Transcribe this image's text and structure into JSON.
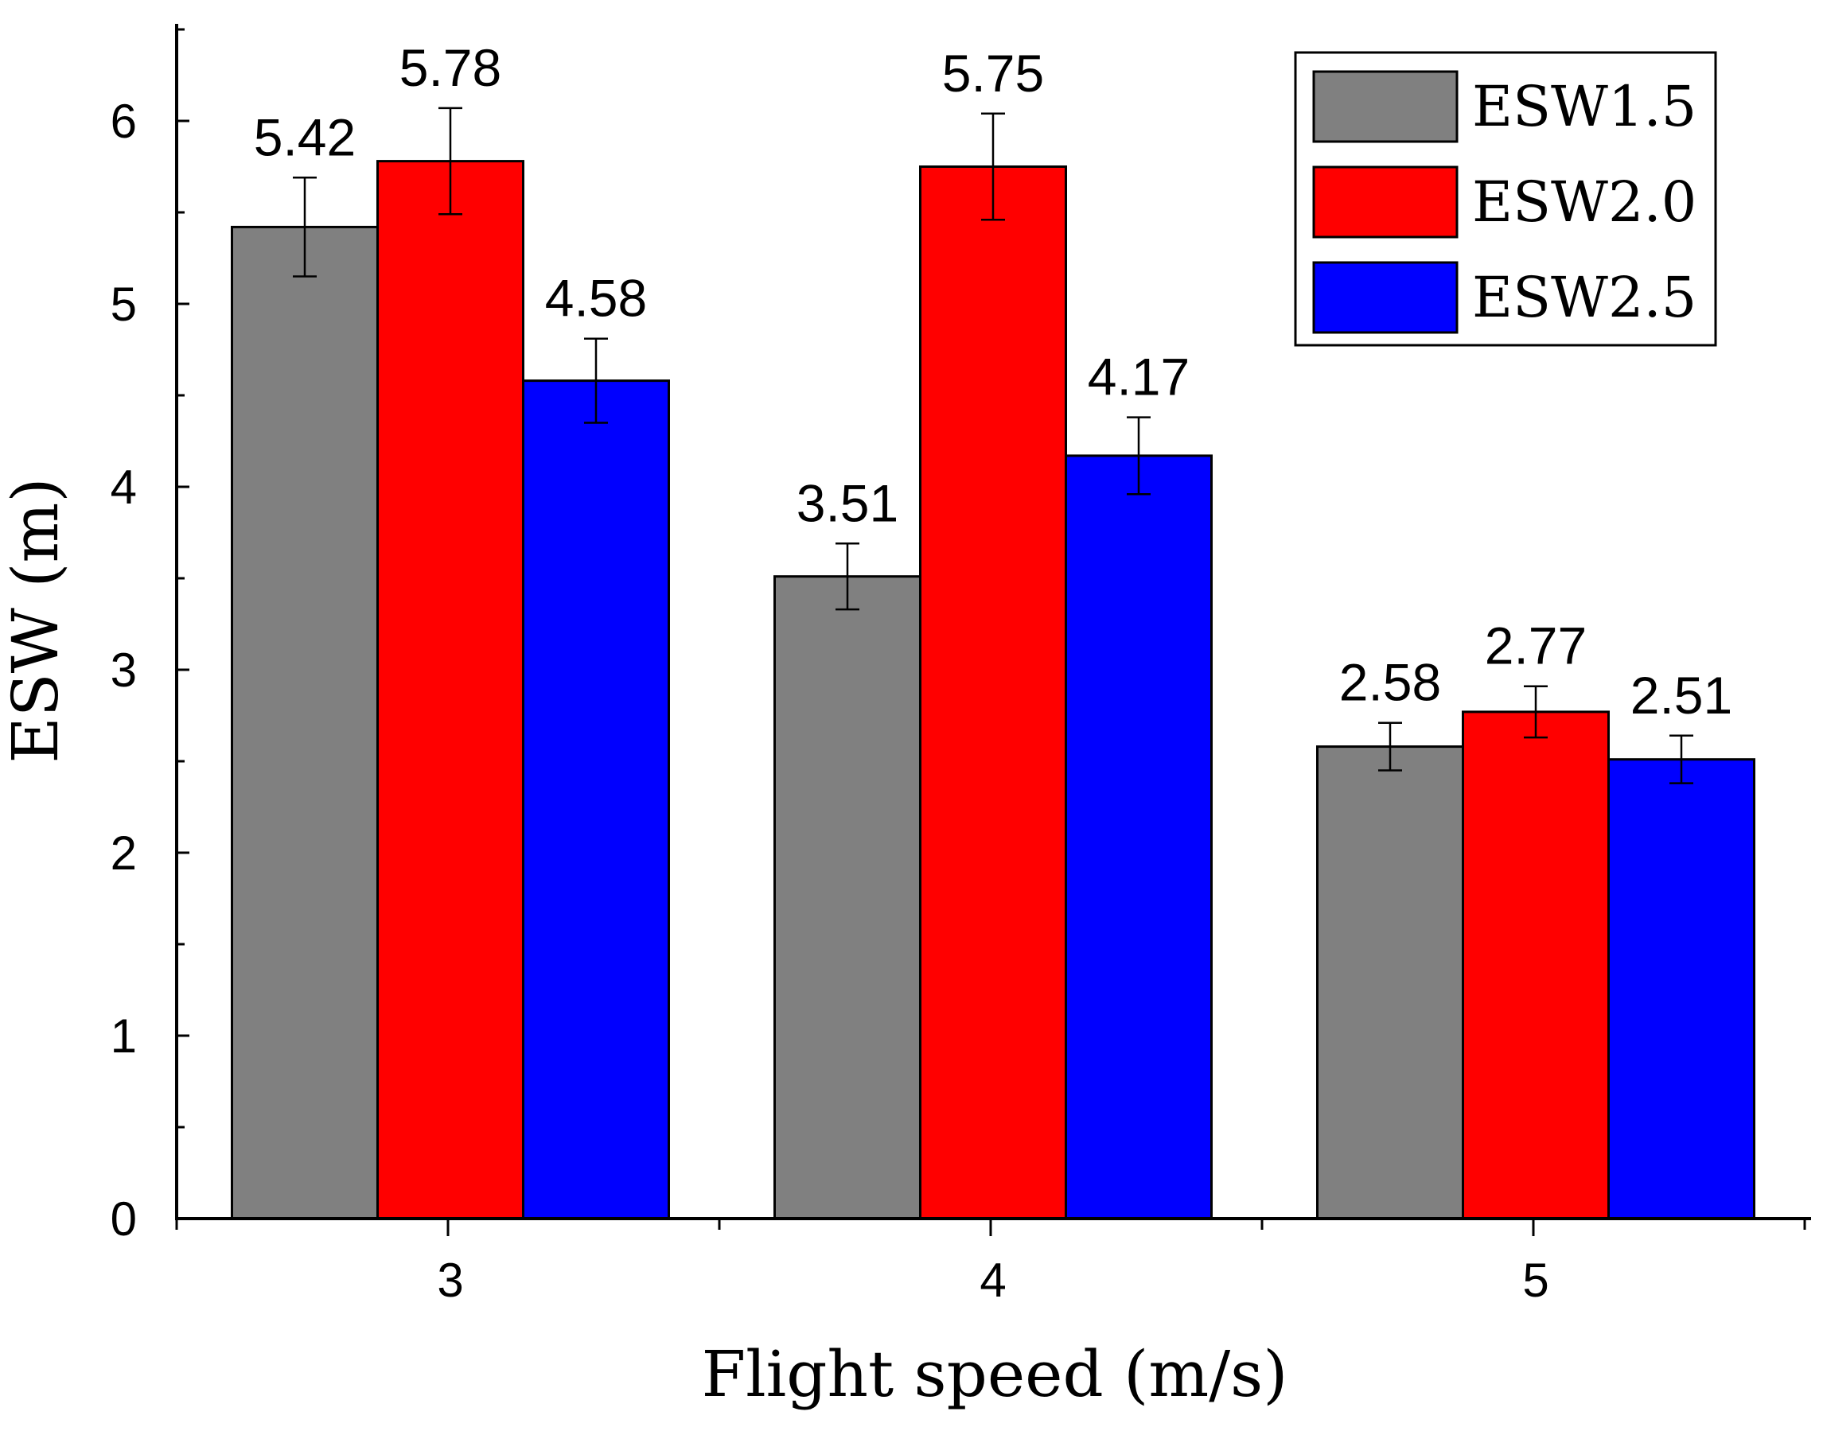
{
  "chart_data": {
    "type": "bar",
    "title": "",
    "xlabel": "Flight speed (m/s)",
    "ylabel": "ESW (m)",
    "ylim": [
      0,
      6.5
    ],
    "yticks": [
      "0",
      "1",
      "2",
      "3",
      "4",
      "5",
      "6"
    ],
    "categories": [
      "3",
      "4",
      "5"
    ],
    "series": [
      {
        "name": "ESW1.5",
        "color": "#808080",
        "values": [
          5.42,
          3.51,
          2.58
        ],
        "labels": [
          "5.42",
          "3.51",
          "2.58"
        ],
        "errors": [
          0.27,
          0.18,
          0.13
        ]
      },
      {
        "name": "ESW2.0",
        "color": "#ff0000",
        "values": [
          5.78,
          5.75,
          2.77
        ],
        "labels": [
          "5.78",
          "5.75",
          "2.77"
        ],
        "errors": [
          0.29,
          0.29,
          0.14
        ]
      },
      {
        "name": "ESW2.5",
        "color": "#0000ff",
        "values": [
          4.58,
          4.17,
          2.51
        ],
        "labels": [
          "4.58",
          "4.17",
          "2.51"
        ],
        "errors": [
          0.23,
          0.21,
          0.13
        ]
      }
    ],
    "legend": "top-right",
    "grid": false
  }
}
